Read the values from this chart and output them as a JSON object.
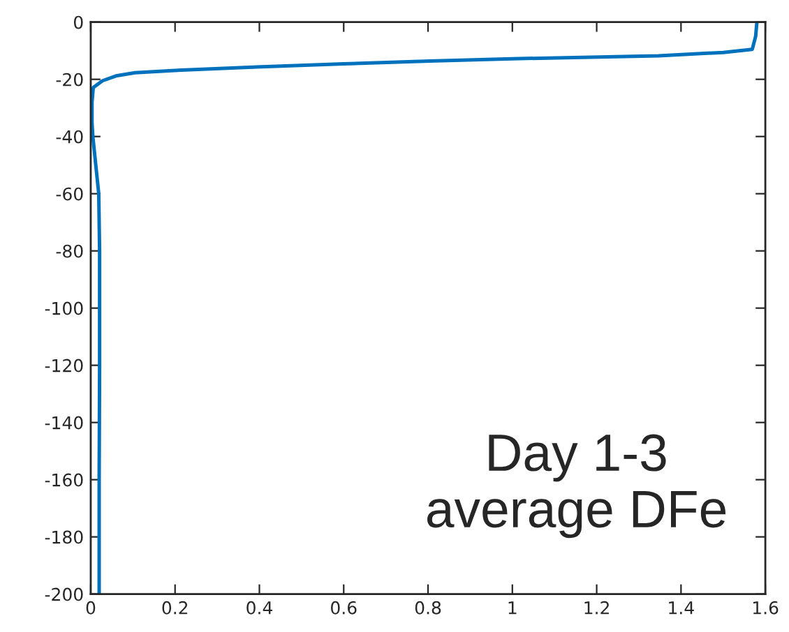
{
  "chart_data": {
    "type": "line",
    "series": [
      {
        "color": "#0072bd",
        "x": [
          1.58,
          1.577,
          1.569,
          1.5,
          1.347,
          1.0,
          0.804,
          0.6,
          0.394,
          0.2,
          0.105,
          0.06,
          0.028,
          0.006,
          0.003,
          0.003,
          0.005,
          0.012,
          0.019,
          0.021,
          0.021,
          0.02,
          0.02
        ],
        "values": [
          0,
          -5,
          -9.5,
          -10.6,
          -11.8,
          -12.8,
          -13.6,
          -14.6,
          -15.7,
          -16.9,
          -17.7,
          -18.8,
          -20.5,
          -22.9,
          -28,
          -35,
          -40,
          -50,
          -60,
          -80,
          -120,
          -160,
          -200
        ]
      }
    ],
    "xlim": [
      0,
      1.6
    ],
    "xticks": [
      0,
      0.2,
      0.4,
      0.6,
      0.8,
      1,
      1.2,
      1.4,
      1.6
    ],
    "ylim": [
      -200,
      0
    ],
    "yticks": [
      -200,
      -180,
      -160,
      -140,
      -120,
      -100,
      -80,
      -60,
      -40,
      -20,
      0
    ],
    "annotations": [
      "Day 1-3\naverage DFe"
    ],
    "grid": false,
    "marker": "none",
    "line_style": "solid"
  }
}
